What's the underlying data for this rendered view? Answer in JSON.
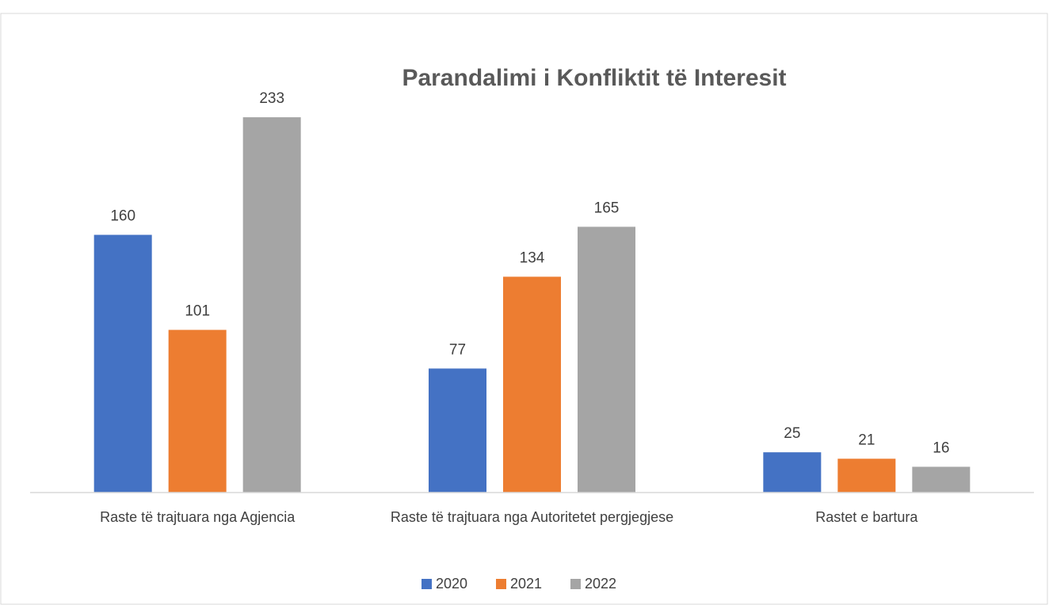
{
  "chart_data": {
    "type": "bar",
    "title": "Parandalimi i Konfliktit të Interesit",
    "categories": [
      "Raste të trajtuara nga Agjencia",
      "Raste të trajtuara nga Autoritetet pergjegjese",
      "Rastet e bartura"
    ],
    "series": [
      {
        "name": "2020",
        "color": "#4472c4",
        "values": [
          160,
          77,
          25
        ]
      },
      {
        "name": "2021",
        "color": "#ed7d31",
        "values": [
          101,
          134,
          21
        ]
      },
      {
        "name": "2022",
        "color": "#a5a5a5",
        "values": [
          233,
          165,
          16
        ]
      }
    ],
    "ylim": [
      0,
      250
    ],
    "grid": false,
    "legend": "bottom"
  }
}
